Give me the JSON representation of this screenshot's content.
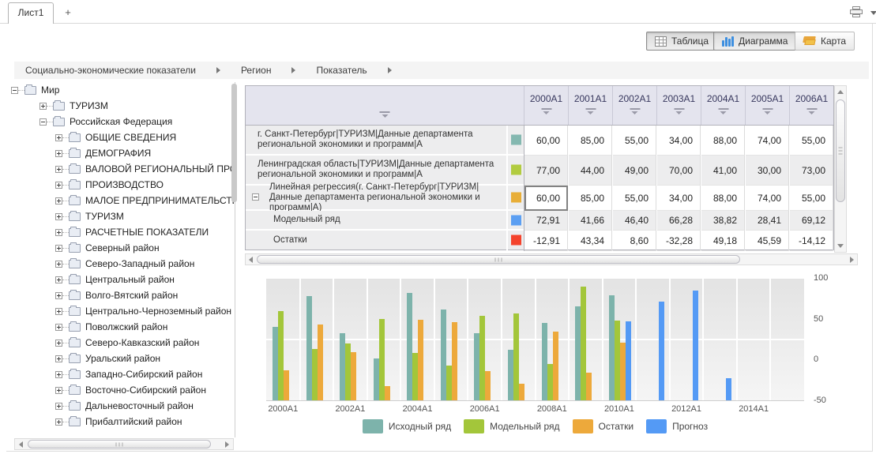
{
  "window": {
    "tab_label": "Лист1",
    "new_tab_label": "+"
  },
  "toolbar": {
    "buttons": [
      {
        "label": "Таблица",
        "icon": "table-icon",
        "active": true
      },
      {
        "label": "Диаграмма",
        "icon": "bar-chart-icon",
        "active": true
      },
      {
        "label": "Карта",
        "icon": "map-icon",
        "active": false
      }
    ]
  },
  "breadcrumb": {
    "items": [
      "Социально-экономические показатели",
      "Регион",
      "Показатель"
    ]
  },
  "tree": {
    "items": [
      {
        "label": "Мир",
        "depth": 0,
        "expander": "minus"
      },
      {
        "label": "ТУРИЗМ",
        "depth": 1,
        "expander": "plus"
      },
      {
        "label": "Российская Федерация",
        "depth": 1,
        "expander": "minus"
      },
      {
        "label": "ОБЩИЕ СВЕДЕНИЯ",
        "depth": 2,
        "expander": "plus"
      },
      {
        "label": "ДЕМОГРАФИЯ",
        "depth": 2,
        "expander": "plus"
      },
      {
        "label": "ВАЛОВОЙ РЕГИОНАЛЬНЫЙ ПРОДУКТ",
        "depth": 2,
        "expander": "plus"
      },
      {
        "label": "ПРОИЗВОДСТВО",
        "depth": 2,
        "expander": "plus"
      },
      {
        "label": "МАЛОЕ ПРЕДПРИНИМАТЕЛЬСТВО",
        "depth": 2,
        "expander": "plus"
      },
      {
        "label": "ТУРИЗМ",
        "depth": 2,
        "expander": "plus"
      },
      {
        "label": "РАСЧЕТНЫЕ ПОКАЗАТЕЛИ",
        "depth": 2,
        "expander": "plus"
      },
      {
        "label": "Северный район",
        "depth": 2,
        "expander": "plus"
      },
      {
        "label": "Северо-Западный район",
        "depth": 2,
        "expander": "plus"
      },
      {
        "label": "Центральный район",
        "depth": 2,
        "expander": "plus"
      },
      {
        "label": "Волго-Вятский район",
        "depth": 2,
        "expander": "plus"
      },
      {
        "label": "Центрально-Черноземный район",
        "depth": 2,
        "expander": "plus"
      },
      {
        "label": "Поволжский район",
        "depth": 2,
        "expander": "plus"
      },
      {
        "label": "Северо-Кавказский район",
        "depth": 2,
        "expander": "plus"
      },
      {
        "label": "Уральский район",
        "depth": 2,
        "expander": "plus"
      },
      {
        "label": "Западно-Сибирский район",
        "depth": 2,
        "expander": "plus"
      },
      {
        "label": "Восточно-Сибирский район",
        "depth": 2,
        "expander": "plus"
      },
      {
        "label": "Дальневосточный район",
        "depth": 2,
        "expander": "plus"
      },
      {
        "label": "Прибалтийский район",
        "depth": 2,
        "expander": "plus"
      }
    ]
  },
  "table": {
    "columns": [
      "2000A1",
      "2001A1",
      "2002A1",
      "2003A1",
      "2004A1",
      "2005A1",
      "2006A1"
    ],
    "rows": [
      {
        "label": "г. Санкт-Петербург|ТУРИЗМ|Данные департамента региональной экономики и программ|А",
        "color": "#84b8b0",
        "indent": 0,
        "expander": null,
        "values": [
          "60,00",
          "85,00",
          "55,00",
          "34,00",
          "88,00",
          "74,00",
          "55,00"
        ],
        "selected_cell": null
      },
      {
        "label": "Ленинградская область|ТУРИЗМ|Данные департамента региональной экономики и программ|А",
        "color": "#b2cc40",
        "indent": 0,
        "expander": null,
        "values": [
          "77,00",
          "44,00",
          "49,00",
          "70,00",
          "41,00",
          "30,00",
          "73,00"
        ],
        "selected_cell": null
      },
      {
        "label": "Линейная регрессия(г. Санкт-Петербург|ТУРИЗМ|Данные департамента региональной экономики и программ|А)",
        "color": "#e8ae38",
        "indent": 0,
        "expander": "minus",
        "values": [
          "60,00",
          "85,00",
          "55,00",
          "34,00",
          "88,00",
          "74,00",
          "55,00"
        ],
        "selected_cell": 0
      },
      {
        "label": "Модельный ряд",
        "color": "#5c9ff2",
        "indent": 1,
        "expander": null,
        "values": [
          "72,91",
          "41,66",
          "46,40",
          "66,28",
          "38,82",
          "28,41",
          "69,12"
        ],
        "selected_cell": null
      },
      {
        "label": "Остатки",
        "color": "#f4432c",
        "indent": 1,
        "expander": null,
        "values": [
          "-12,91",
          "43,34",
          "8,60",
          "-32,28",
          "49,18",
          "45,59",
          "-14,12"
        ],
        "selected_cell": null
      }
    ]
  },
  "chart_data": {
    "type": "bar",
    "x_slots": [
      2000,
      2001,
      2002,
      2003,
      2004,
      2005,
      2006,
      2007,
      2008,
      2009,
      2010,
      2011,
      2012,
      2013,
      2014,
      2015
    ],
    "x_tick_labels": [
      "2000A1",
      "2002A1",
      "2004A1",
      "2006A1",
      "2008A1",
      "2010A1",
      "2012A1",
      "2014A1"
    ],
    "left_axis": {
      "min": 0,
      "max": 100,
      "ticks": [
        0,
        50,
        100
      ]
    },
    "right_axis": {
      "min": -50,
      "max": 100,
      "ticks": [
        -50,
        0,
        50,
        100
      ]
    },
    "grid": true,
    "legend_position": "bottom",
    "series": [
      {
        "name": "Исходный ряд",
        "color": "#7db3ab",
        "axis": "left",
        "values": [
          60,
          85,
          55,
          34,
          88,
          74,
          55,
          41,
          63,
          77,
          86,
          null,
          null,
          null,
          null,
          null
        ]
      },
      {
        "name": "Модельный ряд",
        "color": "#a3c63a",
        "axis": "left",
        "values": [
          72.91,
          41.66,
          46.4,
          66.28,
          38.82,
          28.41,
          69.12,
          71,
          30,
          93,
          65,
          null,
          null,
          null,
          null,
          null
        ]
      },
      {
        "name": "Остатки",
        "color": "#eda93b",
        "axis": "right",
        "values": [
          -12.91,
          43.34,
          8.6,
          -32.28,
          49.18,
          45.59,
          -14.12,
          -30,
          34,
          -16,
          21,
          null,
          null,
          null,
          null,
          null
        ]
      },
      {
        "name": "Прогноз",
        "color": "#549af5",
        "axis": "right",
        "values": [
          null,
          null,
          null,
          null,
          null,
          null,
          null,
          null,
          null,
          null,
          47,
          71,
          85,
          -23,
          null,
          null
        ]
      }
    ]
  }
}
